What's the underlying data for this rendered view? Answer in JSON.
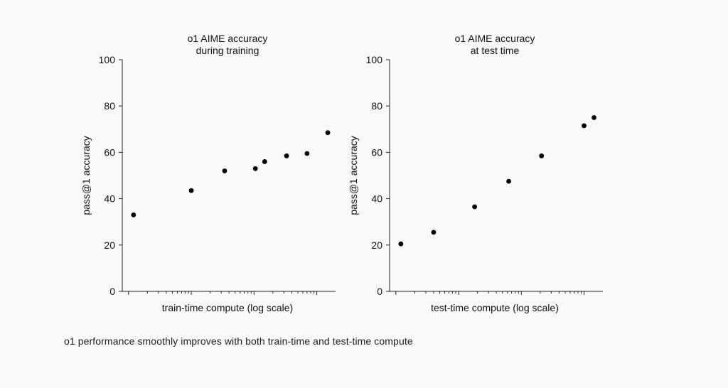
{
  "page": {
    "caption": "o1 performance smoothly improves with both train-time and test-time compute",
    "background": "#f9f9f9"
  },
  "chart_data": [
    {
      "type": "scatter",
      "title": [
        "o1 AIME accuracy",
        "during training"
      ],
      "xlabel": "train-time compute (log scale)",
      "ylabel": "pass@1 accuracy",
      "xscale": "log",
      "ylim": [
        0,
        100
      ],
      "yticks": [
        "0",
        "20",
        "40",
        "60",
        "80",
        "100"
      ],
      "tick_values": [
        0,
        20,
        40,
        60,
        80,
        100
      ],
      "grid": false,
      "point_color": "#000000",
      "points": [
        {
          "x": 1.2,
          "y": 33
        },
        {
          "x": 10,
          "y": 43.5
        },
        {
          "x": 34,
          "y": 52
        },
        {
          "x": 105,
          "y": 53
        },
        {
          "x": 148,
          "y": 56
        },
        {
          "x": 330,
          "y": 58.5
        },
        {
          "x": 700,
          "y": 59.5
        },
        {
          "x": 1500,
          "y": 68.5
        }
      ]
    },
    {
      "type": "scatter",
      "title": [
        "o1 AIME accuracy",
        "at test time"
      ],
      "xlabel": "test-time compute (log scale)",
      "ylabel": "pass@1 accuracy",
      "xscale": "log",
      "ylim": [
        0,
        100
      ],
      "yticks": [
        "0",
        "20",
        "40",
        "60",
        "80",
        "100"
      ],
      "tick_values": [
        0,
        20,
        40,
        60,
        80,
        100
      ],
      "grid": false,
      "point_color": "#000000",
      "points": [
        {
          "x": 1.2,
          "y": 20.5
        },
        {
          "x": 4.0,
          "y": 25.5
        },
        {
          "x": 18,
          "y": 36.5
        },
        {
          "x": 63,
          "y": 47.5
        },
        {
          "x": 210,
          "y": 58.5
        },
        {
          "x": 1000,
          "y": 71.5
        },
        {
          "x": 1440,
          "y": 75
        }
      ]
    }
  ]
}
